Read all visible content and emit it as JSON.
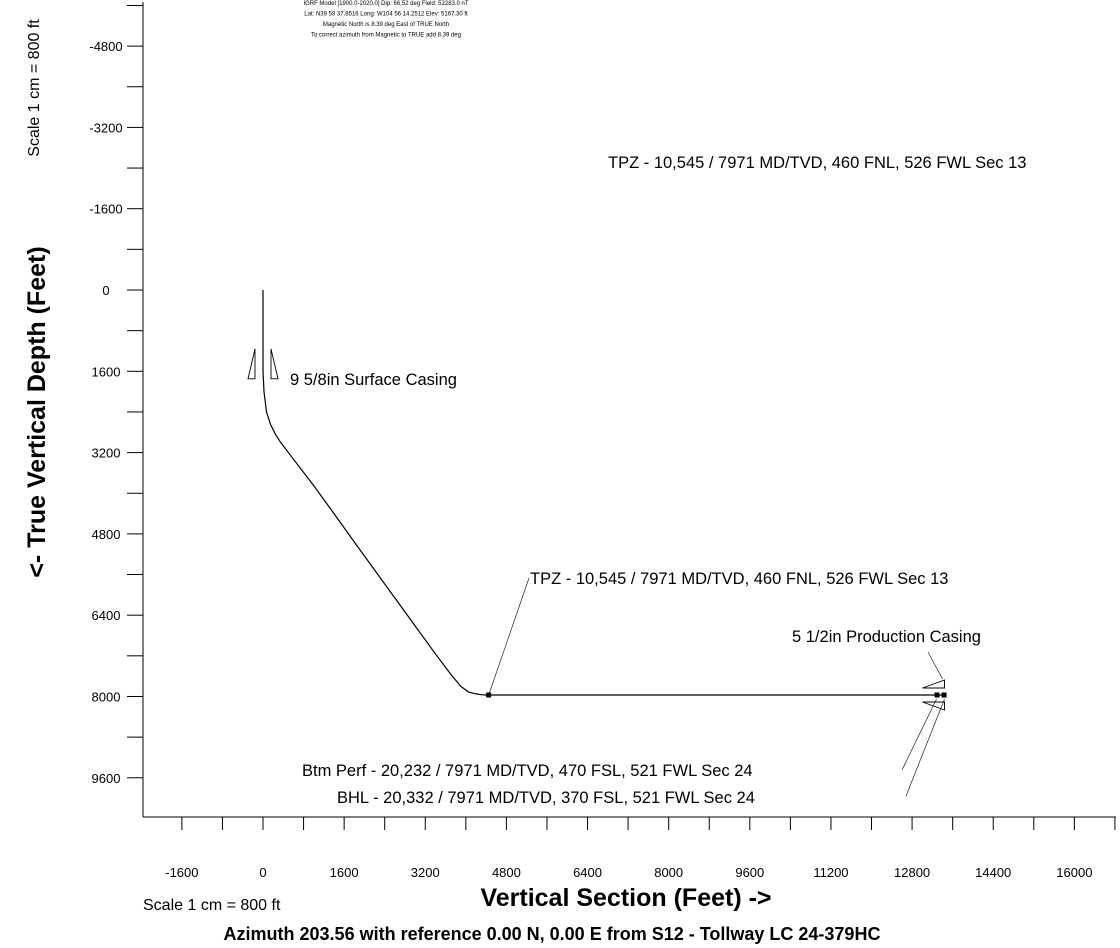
{
  "chart_data": {
    "type": "line",
    "title": "",
    "xlabel": "Vertical Section (Feet) ->",
    "ylabel": "<- True Vertical Depth (Feet)",
    "x_scale_label": "Scale 1 cm = 800 ft",
    "y_scale_label": "Scale 1 cm = 800 ft",
    "footer": "Azimuth 203.56 with reference 0.00 N, 0.00 E from S12 - Tollway LC 24-379HC",
    "xlim": [
      -2400,
      16800
    ],
    "ylim": [
      -5750,
      10750
    ],
    "y_inverted": true,
    "x_ticks": [
      -1600,
      0,
      1600,
      3200,
      4800,
      6400,
      8000,
      9600,
      11200,
      12800,
      14400,
      16000
    ],
    "y_ticks": [
      -4800,
      -3200,
      -1600,
      0,
      1600,
      3200,
      4800,
      6400,
      8000,
      9600
    ],
    "header_lines": [
      "IGRF Model [1900.0-2020.0] Dip: 66.52 deg Field: 52283.0 nT",
      "Lat: N39 58 37.8516 Long: W104 56 14.2512 Elev: 5167.30 ft",
      "Magnetic North is 8.39 deg East of TRUE North",
      "To correct azimuth from Magnetic to TRUE add 8.39 deg"
    ],
    "series": [
      {
        "x": [
          0,
          0,
          0,
          20,
          70,
          150,
          250,
          350,
          600,
          1000,
          1400,
          1800,
          2200,
          2600,
          3000,
          3400,
          3700,
          3900,
          4050,
          4200,
          4300,
          4400,
          4450,
          13440
        ],
        "y": [
          0,
          1000,
          1600,
          2000,
          2400,
          2650,
          2850,
          3000,
          3330,
          3850,
          4400,
          4960,
          5510,
          6060,
          6610,
          7160,
          7560,
          7800,
          7910,
          7950,
          7965,
          7971,
          7971,
          7971
        ]
      }
    ],
    "annotations": [
      {
        "text": "9 5/8in Surface Casing",
        "x": 0,
        "y": 1650
      },
      {
        "text": "TPZ - 10,545 / 7971 MD/TVD, 460 FNL, 526 FWL Sec 13",
        "x": 4450,
        "y": 7971
      },
      {
        "text": "TPZ - 10,545 / 7971 MD/TVD, 460 FNL, 526 FWL Sec 13",
        "x": 6800,
        "y": -2500
      },
      {
        "text": "5 1/2in Production Casing",
        "x": 13440,
        "y": 7971
      },
      {
        "text": "Btm Perf - 20,232 / 7971 MD/TVD, 470 FSL, 521 FWL Sec 24",
        "x": 13340,
        "y": 7971
      },
      {
        "text": "BHL - 20,332 / 7971 MD/TVD, 370 FSL, 521 FWL Sec 24",
        "x": 13440,
        "y": 7971
      }
    ]
  }
}
